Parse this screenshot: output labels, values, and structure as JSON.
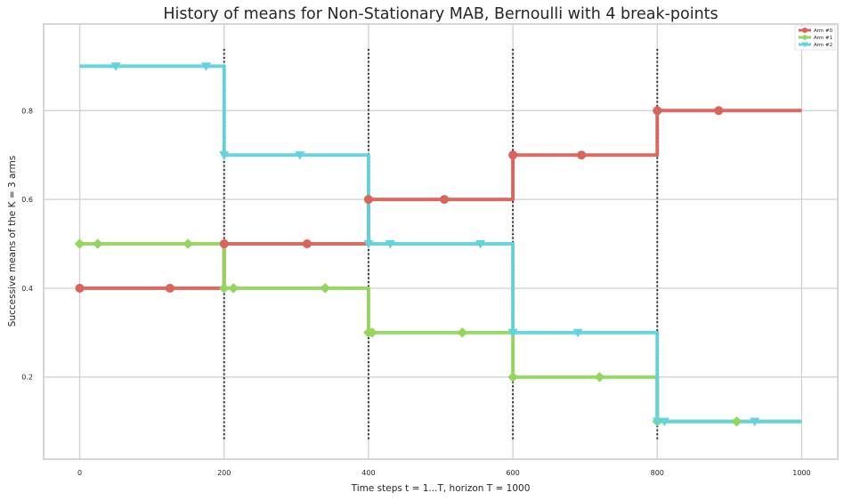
{
  "chart_data": {
    "type": "line",
    "title": "History of means for Non-Stationary MAB, Bernoulli with 4 break-points",
    "xlabel": "Time steps t = 1...T, horizon T = 1000",
    "ylabel": "Successive means of the K = 3 arms",
    "xlim": [
      -50,
      1050
    ],
    "ylim": [
      0.015,
      0.995
    ],
    "xticks": [
      0,
      200,
      400,
      600,
      800,
      1000
    ],
    "yticks": [
      0.2,
      0.4,
      0.6,
      0.8
    ],
    "xtick_labels": [
      "0",
      "200",
      "400",
      "600",
      "800",
      "1000"
    ],
    "ytick_labels": [
      "0.2",
      "0.4",
      "0.6",
      "0.8"
    ],
    "grid": true,
    "legend_position": "top-right",
    "break_points": [
      200,
      400,
      600,
      800
    ],
    "series": [
      {
        "name": "Arm #0",
        "color": "#d9645a",
        "marker": "circle",
        "x": [
          0,
          200,
          400,
          600,
          800,
          1000
        ],
        "y": [
          0.4,
          0.5,
          0.6,
          0.7,
          0.8,
          0.8
        ],
        "marker_x": [
          0,
          125,
          200,
          315,
          400,
          505,
          600,
          695,
          800,
          885
        ]
      },
      {
        "name": "Arm #1",
        "color": "#93d65e",
        "marker": "diamond",
        "x": [
          0,
          200,
          400,
          600,
          800,
          1000
        ],
        "y": [
          0.5,
          0.4,
          0.3,
          0.2,
          0.1,
          0.1
        ],
        "marker_x": [
          0,
          25,
          150,
          200,
          213,
          340,
          400,
          405,
          530,
          600,
          720,
          800,
          910
        ]
      },
      {
        "name": "Arm #2",
        "color": "#62d2db",
        "marker": "triangle-down",
        "x": [
          0,
          200,
          400,
          600,
          800,
          1000
        ],
        "y": [
          0.9,
          0.7,
          0.5,
          0.3,
          0.1,
          0.1
        ],
        "marker_x": [
          50,
          175,
          200,
          305,
          400,
          430,
          555,
          600,
          690,
          800,
          810,
          935
        ]
      }
    ]
  }
}
